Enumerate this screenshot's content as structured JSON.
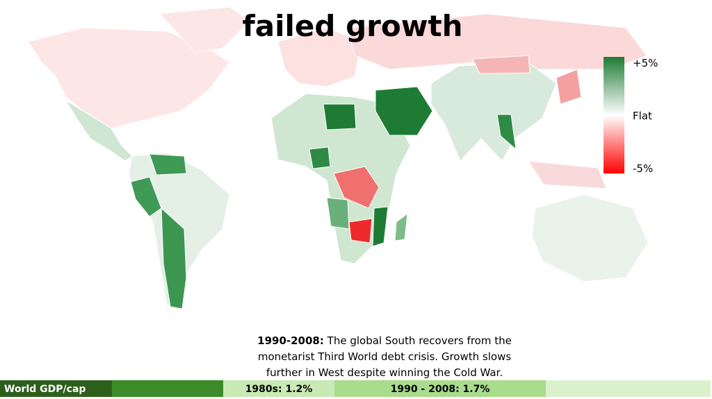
{
  "title": "failed growth",
  "legend": {
    "top": "+5%",
    "middle": "Flat",
    "bottom": "-5%"
  },
  "caption": {
    "lead": "1990-2008:",
    "lines": [
      "The global South recovers from the",
      "monetarist Third World debt crisis.  Growth slows",
      "further in West despite winning the Cold War."
    ]
  },
  "bar": {
    "label": "World GDP/cap",
    "segments": [
      "1980s: 1.2%",
      "1990 - 2008: 1.7%"
    ]
  }
}
